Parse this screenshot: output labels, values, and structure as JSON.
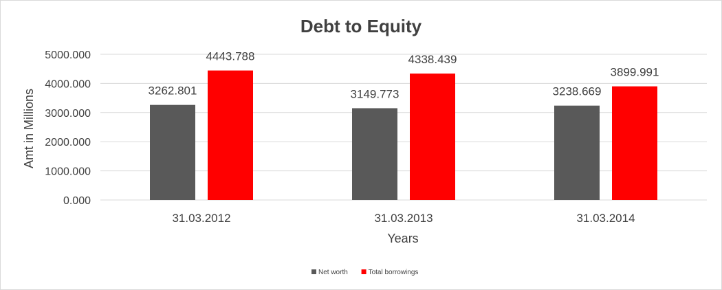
{
  "chart_data": {
    "type": "bar",
    "title": "Debt to Equity",
    "xlabel": "Years",
    "ylabel": "Amt in Millions",
    "categories": [
      "31.03.2012",
      "31.03.2013",
      "31.03.2014"
    ],
    "series": [
      {
        "name": "Net worth",
        "values": [
          3262.801,
          3149.773,
          3238.669
        ],
        "color": "#595959"
      },
      {
        "name": "Total borrowings",
        "values": [
          4443.788,
          4338.439,
          3899.991
        ],
        "color": "#ff0000"
      }
    ],
    "value_labels": [
      [
        "3262.801",
        "3149.773",
        "3238.669"
      ],
      [
        "4443.788",
        "4338.439",
        "3899.991"
      ]
    ],
    "ylim": [
      0,
      5000
    ],
    "yticks": [
      "0.000",
      "1000.000",
      "2000.000",
      "3000.000",
      "4000.000",
      "5000.000"
    ],
    "grid": true,
    "legend_position": "bottom"
  }
}
